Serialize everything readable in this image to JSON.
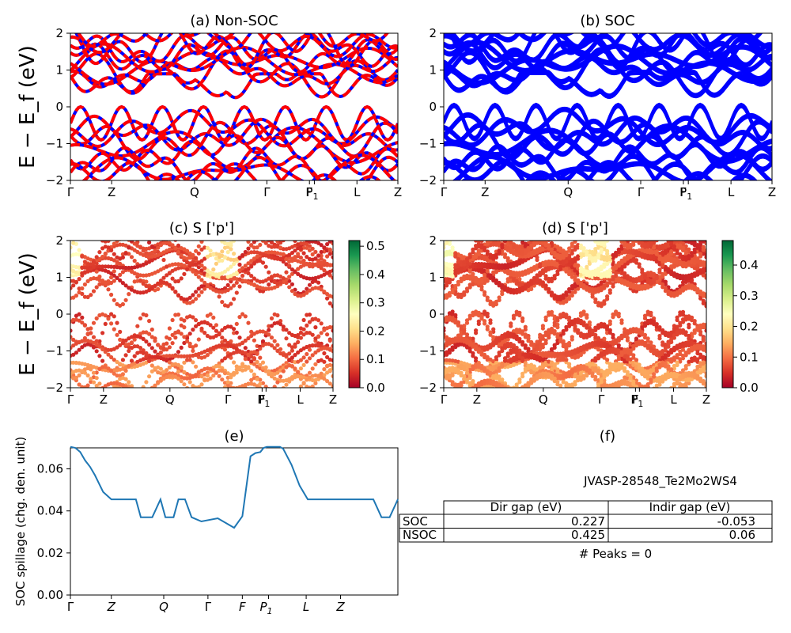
{
  "figure": {
    "ylabel_band": "E − E_f (eV)",
    "ylabel_spillage": "SOC spillage (chg. den. unit)"
  },
  "chart_data": [
    {
      "id": "a",
      "type": "line",
      "title": "(a) Non-SOC",
      "xticks": [
        "Γ",
        "Z",
        "Q",
        "Γ",
        "F",
        "P1",
        "L",
        "Z"
      ],
      "ylim": [
        -2,
        2
      ],
      "yticks": [
        -2,
        -1,
        0,
        1,
        2
      ],
      "series_colors": [
        "#0000ff",
        "#ff0000"
      ],
      "series_style": "blue solid overlaid by red dashed",
      "band_count": 20
    },
    {
      "id": "b",
      "type": "line",
      "title": "(b) SOC",
      "xticks": [
        "Γ",
        "Z",
        "Q",
        "Γ",
        "F",
        "P1",
        "L",
        "Z"
      ],
      "ylim": [
        -2,
        2
      ],
      "yticks": [
        -2,
        -1,
        0,
        1,
        2
      ],
      "series_colors": [
        "#0000ff"
      ],
      "band_count": 20
    },
    {
      "id": "c",
      "type": "scatter",
      "title": "(c)  S ['p']",
      "xticks": [
        "Γ",
        "Z",
        "Q",
        "Γ",
        "F",
        "P1",
        "L",
        "Z"
      ],
      "ylim": [
        -2,
        2
      ],
      "yticks": [
        -2,
        -1,
        0,
        1,
        2
      ],
      "colorbar": {
        "min": 0.0,
        "max": 0.52,
        "ticks": [
          "0.0",
          "0.1",
          "0.2",
          "0.3",
          "0.4",
          "0.5"
        ],
        "cmap": "RdYlGn"
      }
    },
    {
      "id": "d",
      "type": "scatter",
      "title": "(d) S ['p']",
      "xticks": [
        "Γ",
        "Z",
        "Q",
        "Γ",
        "F",
        "P1",
        "L",
        "Z"
      ],
      "ylim": [
        -2,
        2
      ],
      "yticks": [
        -2,
        -1,
        0,
        1,
        2
      ],
      "colorbar": {
        "min": 0.0,
        "max": 0.48,
        "ticks": [
          "0.0",
          "0.1",
          "0.2",
          "0.3",
          "0.4"
        ],
        "cmap": "RdYlGn"
      }
    },
    {
      "id": "e",
      "type": "line",
      "title": "(e)",
      "xticks": [
        "Γ",
        "Z",
        "Q",
        "Γ",
        "F",
        "P1",
        "L",
        "Z"
      ],
      "ylabel": "SOC spillage (chg. den. unit)",
      "ylim": [
        0,
        0.07
      ],
      "yticks": [
        "0.00",
        "0.02",
        "0.04",
        "0.06"
      ],
      "color": "#1f77b4",
      "x": [
        0,
        0.03,
        0.06,
        0.09,
        0.12,
        0.15,
        0.2,
        0.25,
        0.3,
        0.35,
        0.4,
        0.43,
        0.46,
        0.5,
        0.55,
        0.58,
        0.6,
        0.63,
        0.66,
        0.7,
        0.74,
        0.8,
        0.9,
        1.0,
        1.05,
        1.1,
        1.13,
        1.16,
        1.18,
        1.2,
        1.23,
        1.28,
        1.3,
        1.35,
        1.4,
        1.45,
        1.5,
        1.6,
        1.7,
        1.75,
        1.8,
        1.85,
        1.9,
        1.95,
        2.0
      ],
      "values": [
        0.0705,
        0.07,
        0.068,
        0.064,
        0.061,
        0.057,
        0.049,
        0.0455,
        0.0455,
        0.0455,
        0.0455,
        0.037,
        0.037,
        0.037,
        0.0455,
        0.037,
        0.037,
        0.037,
        0.0455,
        0.0455,
        0.037,
        0.035,
        0.0365,
        0.032,
        0.0375,
        0.066,
        0.0675,
        0.068,
        0.07,
        0.0705,
        0.0705,
        0.0705,
        0.0695,
        0.062,
        0.052,
        0.0455,
        0.0455,
        0.0455,
        0.0455,
        0.0455,
        0.0455,
        0.0455,
        0.037,
        0.037,
        0.0455
      ]
    },
    {
      "id": "f",
      "type": "table",
      "title": "(f)",
      "name": "JVASP-28548_Te2Mo2WS4",
      "columns": [
        "Dir gap (eV)",
        "Indir gap (eV)"
      ],
      "rows": [
        {
          "label": "SOC",
          "values": [
            "0.227",
            "-0.053"
          ]
        },
        {
          "label": "NSOC",
          "values": [
            "0.425",
            "0.06"
          ]
        }
      ],
      "footer": "# Peaks = 0"
    }
  ]
}
